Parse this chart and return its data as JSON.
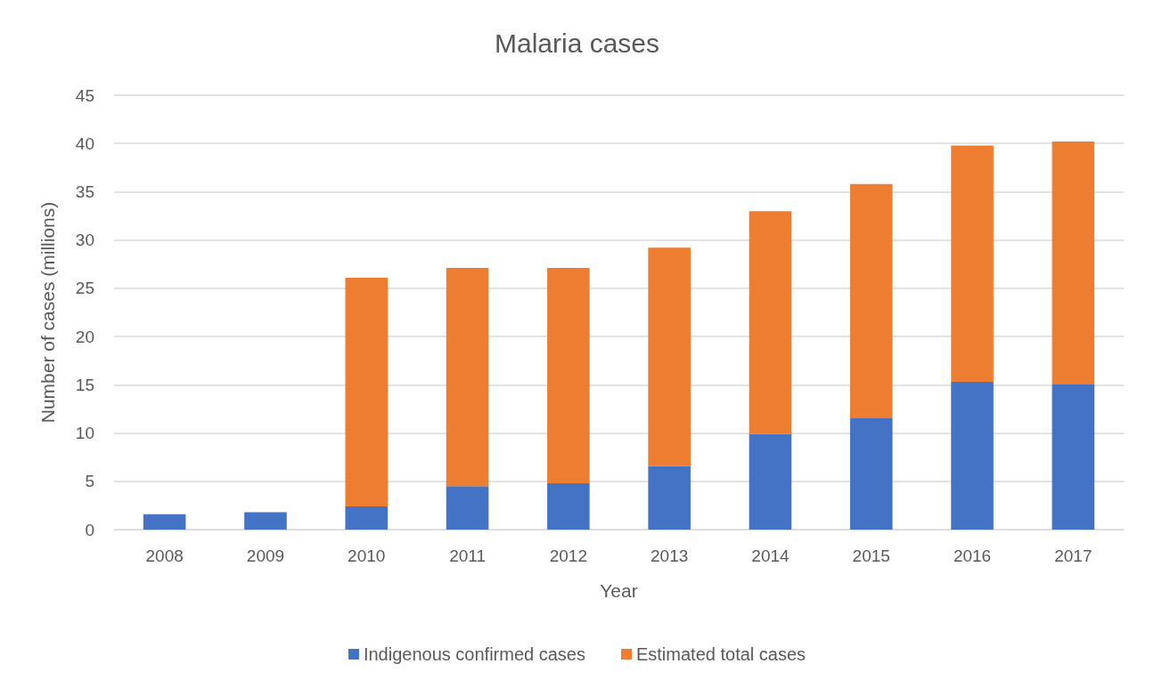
{
  "chart_data": {
    "type": "bar",
    "title": "Malaria cases",
    "xlabel": "Year",
    "ylabel": "Number of cases (millions)",
    "categories": [
      "2008",
      "2009",
      "2010",
      "2011",
      "2012",
      "2013",
      "2014",
      "2015",
      "2016",
      "2017"
    ],
    "stacked": true,
    "series": [
      {
        "name": "Indigenous confirmed cases",
        "color": "#4472c4",
        "values": [
          1.6,
          1.8,
          2.4,
          4.5,
          4.8,
          6.6,
          9.9,
          11.6,
          15.3,
          15.1
        ]
      },
      {
        "name": "Estimated total cases",
        "color": "#ed7d31",
        "values": [
          null,
          null,
          23.7,
          22.6,
          22.3,
          22.6,
          23.1,
          24.2,
          24.5,
          25.1
        ]
      }
    ],
    "ylim": [
      0,
      45
    ],
    "yticks": [
      0,
      5,
      10,
      15,
      20,
      25,
      30,
      35,
      40,
      45
    ],
    "grid": "y",
    "legend": "bottom"
  }
}
